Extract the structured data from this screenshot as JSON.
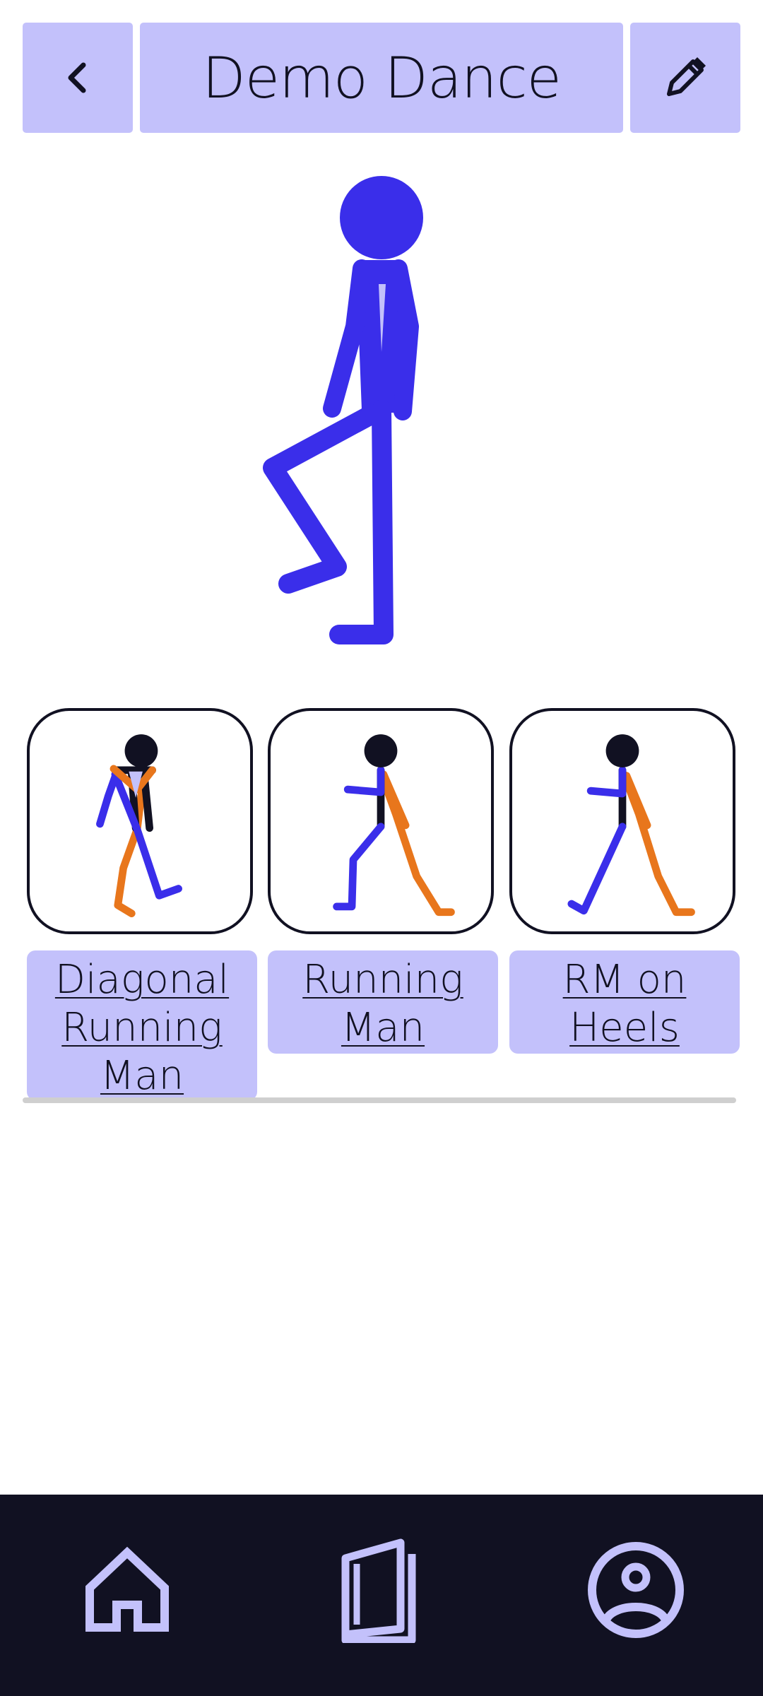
{
  "header": {
    "title": "Demo Dance",
    "back_icon": "chevron-left-icon",
    "edit_icon": "pencil-icon"
  },
  "colors": {
    "accent": "#c3c1fb",
    "figure_blue": "#3a2eea",
    "figure_orange": "#e8761c",
    "dark": "#111122"
  },
  "moves": [
    {
      "label": "Diagonal Running Man"
    },
    {
      "label": "Running Man"
    },
    {
      "label": "RM on Heels"
    }
  ],
  "nav": {
    "items": [
      {
        "icon": "home-icon"
      },
      {
        "icon": "book-icon"
      },
      {
        "icon": "profile-icon"
      }
    ]
  }
}
